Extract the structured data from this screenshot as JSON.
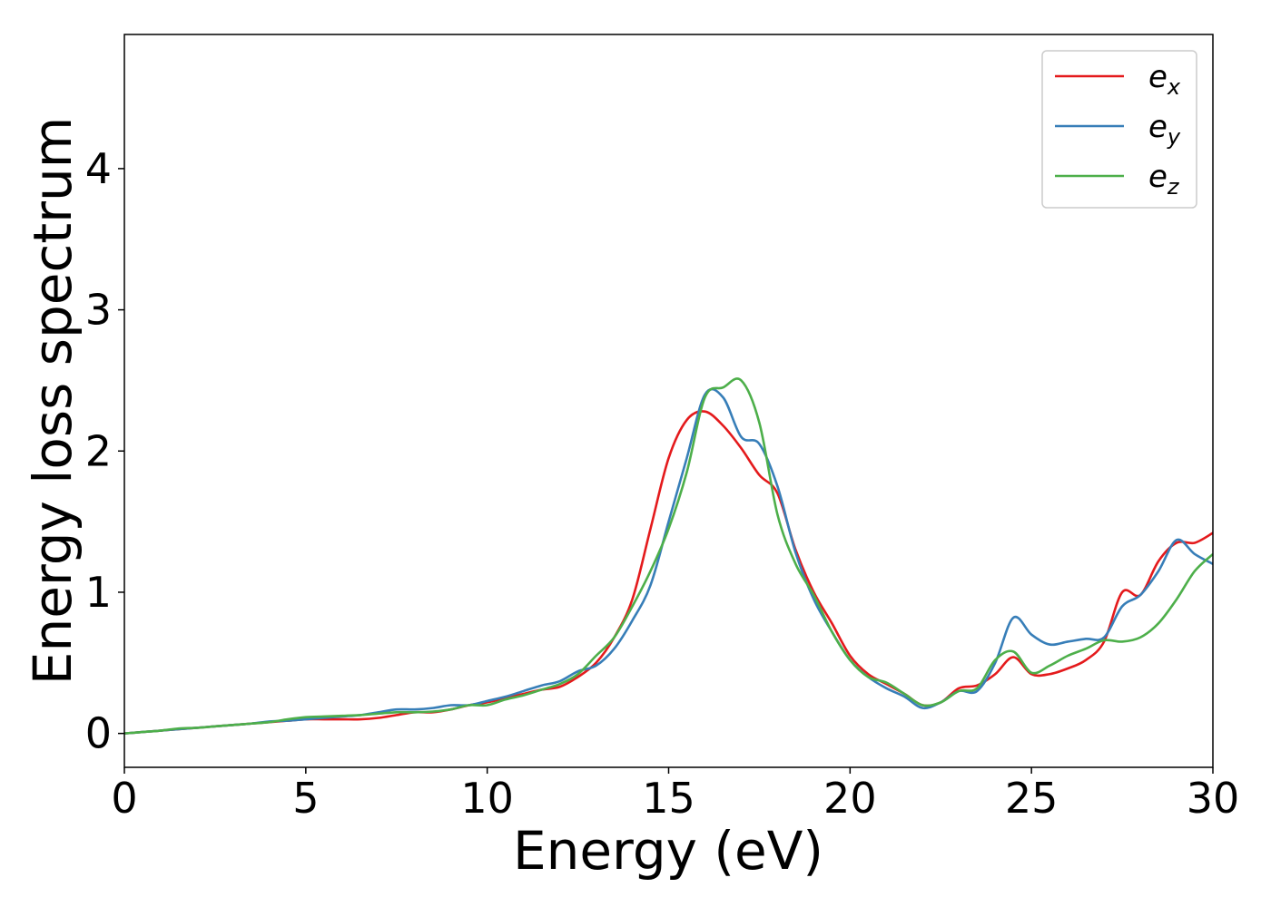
{
  "chart_data": {
    "type": "line",
    "xlabel": "Energy (eV)",
    "ylabel": "Energy loss spectrum",
    "x": [
      0,
      0.5,
      1,
      1.5,
      2,
      2.5,
      3,
      3.5,
      4,
      4.5,
      5,
      5.5,
      6,
      6.5,
      7,
      7.5,
      8,
      8.5,
      9,
      9.5,
      10,
      10.5,
      11,
      11.5,
      12,
      12.5,
      13,
      13.5,
      14,
      14.5,
      15,
      15.5,
      16,
      16.5,
      17,
      17.5,
      18,
      18.5,
      19,
      19.5,
      20,
      20.5,
      21,
      21.5,
      22,
      22.5,
      23,
      23.5,
      24,
      24.5,
      25,
      25.5,
      26,
      26.5,
      27,
      27.5,
      28,
      28.5,
      29,
      29.5,
      30
    ],
    "series": [
      {
        "name": "ex",
        "color": "#e41a1c",
        "values": [
          0,
          0.01,
          0.02,
          0.03,
          0.04,
          0.05,
          0.06,
          0.07,
          0.08,
          0.09,
          0.1,
          0.1,
          0.1,
          0.1,
          0.11,
          0.13,
          0.15,
          0.15,
          0.17,
          0.2,
          0.22,
          0.25,
          0.28,
          0.31,
          0.33,
          0.4,
          0.5,
          0.68,
          0.95,
          1.45,
          1.95,
          2.22,
          2.28,
          2.18,
          2.02,
          1.83,
          1.7,
          1.3,
          1.0,
          0.78,
          0.55,
          0.42,
          0.35,
          0.28,
          0.2,
          0.22,
          0.32,
          0.34,
          0.42,
          0.54,
          0.42,
          0.42,
          0.46,
          0.52,
          0.65,
          1.0,
          0.98,
          1.22,
          1.35,
          1.35,
          1.42
        ]
      },
      {
        "name": "ey",
        "color": "#377eb8",
        "values": [
          0,
          0.01,
          0.02,
          0.03,
          0.04,
          0.05,
          0.06,
          0.07,
          0.085,
          0.09,
          0.1,
          0.11,
          0.12,
          0.13,
          0.15,
          0.17,
          0.17,
          0.18,
          0.2,
          0.2,
          0.23,
          0.26,
          0.3,
          0.34,
          0.37,
          0.44,
          0.48,
          0.6,
          0.8,
          1.05,
          1.5,
          1.95,
          2.4,
          2.38,
          2.1,
          2.05,
          1.75,
          1.28,
          0.95,
          0.72,
          0.52,
          0.4,
          0.32,
          0.26,
          0.18,
          0.22,
          0.3,
          0.3,
          0.5,
          0.82,
          0.7,
          0.63,
          0.65,
          0.67,
          0.68,
          0.9,
          0.98,
          1.15,
          1.37,
          1.27,
          1.2
        ]
      },
      {
        "name": "ez",
        "color": "#4daf4a",
        "values": [
          0,
          0.01,
          0.02,
          0.035,
          0.04,
          0.05,
          0.06,
          0.07,
          0.08,
          0.1,
          0.115,
          0.12,
          0.125,
          0.13,
          0.14,
          0.15,
          0.15,
          0.155,
          0.17,
          0.2,
          0.2,
          0.24,
          0.27,
          0.31,
          0.35,
          0.42,
          0.55,
          0.68,
          0.9,
          1.15,
          1.45,
          1.85,
          2.38,
          2.45,
          2.5,
          2.2,
          1.55,
          1.2,
          0.98,
          0.72,
          0.52,
          0.4,
          0.36,
          0.28,
          0.2,
          0.22,
          0.3,
          0.32,
          0.52,
          0.58,
          0.43,
          0.48,
          0.55,
          0.6,
          0.66,
          0.65,
          0.68,
          0.78,
          0.95,
          1.15,
          1.27
        ]
      }
    ],
    "xlim": [
      0,
      30
    ],
    "xticks": [
      0,
      5,
      10,
      15,
      20,
      25,
      30
    ],
    "ylim": [
      -0.24,
      4.95
    ],
    "yticks": [
      0,
      1,
      2,
      3,
      4
    ],
    "grid": false,
    "legend": "upper right"
  }
}
